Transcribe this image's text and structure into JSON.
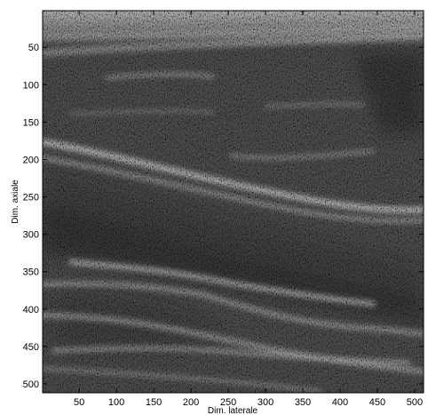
{
  "image": {
    "kind": "ultrasound-bmode",
    "colormap": "grayscale",
    "x_axis_label": "Dim. laterale",
    "y_axis_label": "Dim. axiale",
    "x_ticks": [
      "50",
      "100",
      "150",
      "200",
      "250",
      "300",
      "350",
      "400",
      "450",
      "500"
    ],
    "y_ticks": [
      "50",
      "100",
      "150",
      "200",
      "250",
      "300",
      "350",
      "400",
      "450",
      "500"
    ],
    "x_range": [
      1,
      512
    ],
    "y_range": [
      1,
      512
    ],
    "frame_color": "#000000"
  }
}
